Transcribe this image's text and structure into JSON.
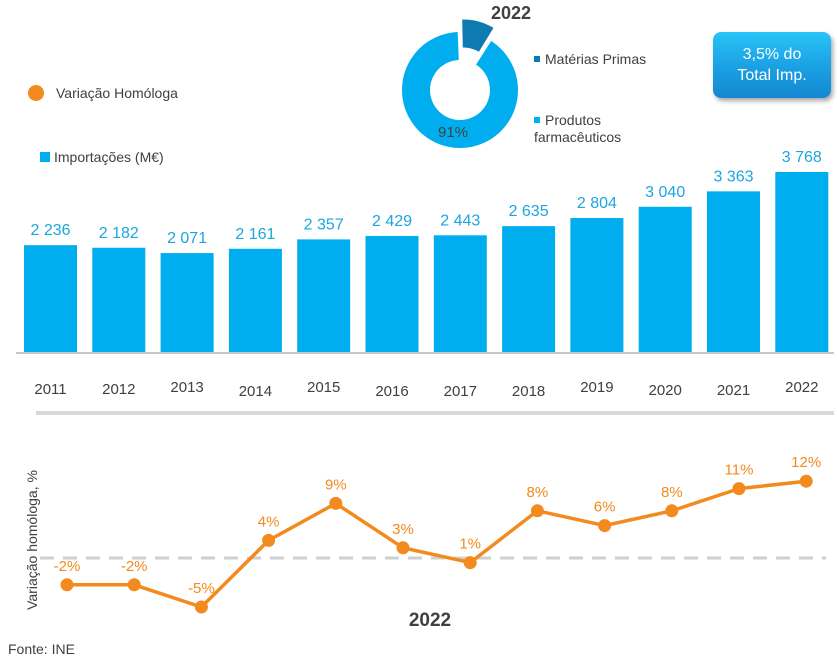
{
  "chart_data": [
    {
      "type": "bar",
      "series_name": "Importações (M€)",
      "categories": [
        "2011",
        "2012",
        "2013",
        "2014",
        "2015",
        "2016",
        "2017",
        "2018",
        "2019",
        "2020",
        "2021",
        "2022"
      ],
      "values": [
        2236,
        2182,
        2071,
        2161,
        2357,
        2429,
        2443,
        2635,
        2804,
        3040,
        3363,
        3768
      ],
      "value_labels": [
        "2 236",
        "2 182",
        "2 071",
        "2 161",
        "2 357",
        "2 429",
        "2 443",
        "2 635",
        "2 804",
        "3 040",
        "3 363",
        "3 768"
      ],
      "color": "#00aeef",
      "grid": false
    },
    {
      "type": "line",
      "series_name": "Variação Homóloga",
      "ylabel": "Variação homóloga, %",
      "values": [
        -2,
        -2,
        -5,
        4,
        9,
        3,
        1,
        8,
        6,
        8,
        11,
        12
      ],
      "value_labels": [
        "-2%",
        "-2%",
        "-5%",
        "4%",
        "9%",
        "3%",
        "1%",
        "8%",
        "6%",
        "8%",
        "11%",
        "12%"
      ],
      "baseline": 0,
      "color": "#f28a1e",
      "title": "2022"
    },
    {
      "type": "pie",
      "title": "2022",
      "slices": [
        {
          "label": "Matérias Primas",
          "value": 9,
          "color": "#0e7bb0"
        },
        {
          "label": "Produtos farmacêuticos",
          "value": 91,
          "color": "#00aeef"
        }
      ],
      "visible_label": "91%",
      "style": "donut-exploded"
    }
  ],
  "legend": {
    "line_label": "Variação Homóloga",
    "bar_label": "Importações (M€)",
    "pie_item1": "Matérias Primas",
    "pie_item2_line1": "Produtos",
    "pie_item2_line2": "farmacêuticos"
  },
  "callout": {
    "line1": "3,5% do",
    "line2": "Total Imp."
  },
  "source": "Fonte: INE",
  "colors": {
    "bar": "#00aeef",
    "line": "#f28a1e",
    "pie_dark": "#0e7bb0",
    "axis": "#d9d9d9"
  }
}
